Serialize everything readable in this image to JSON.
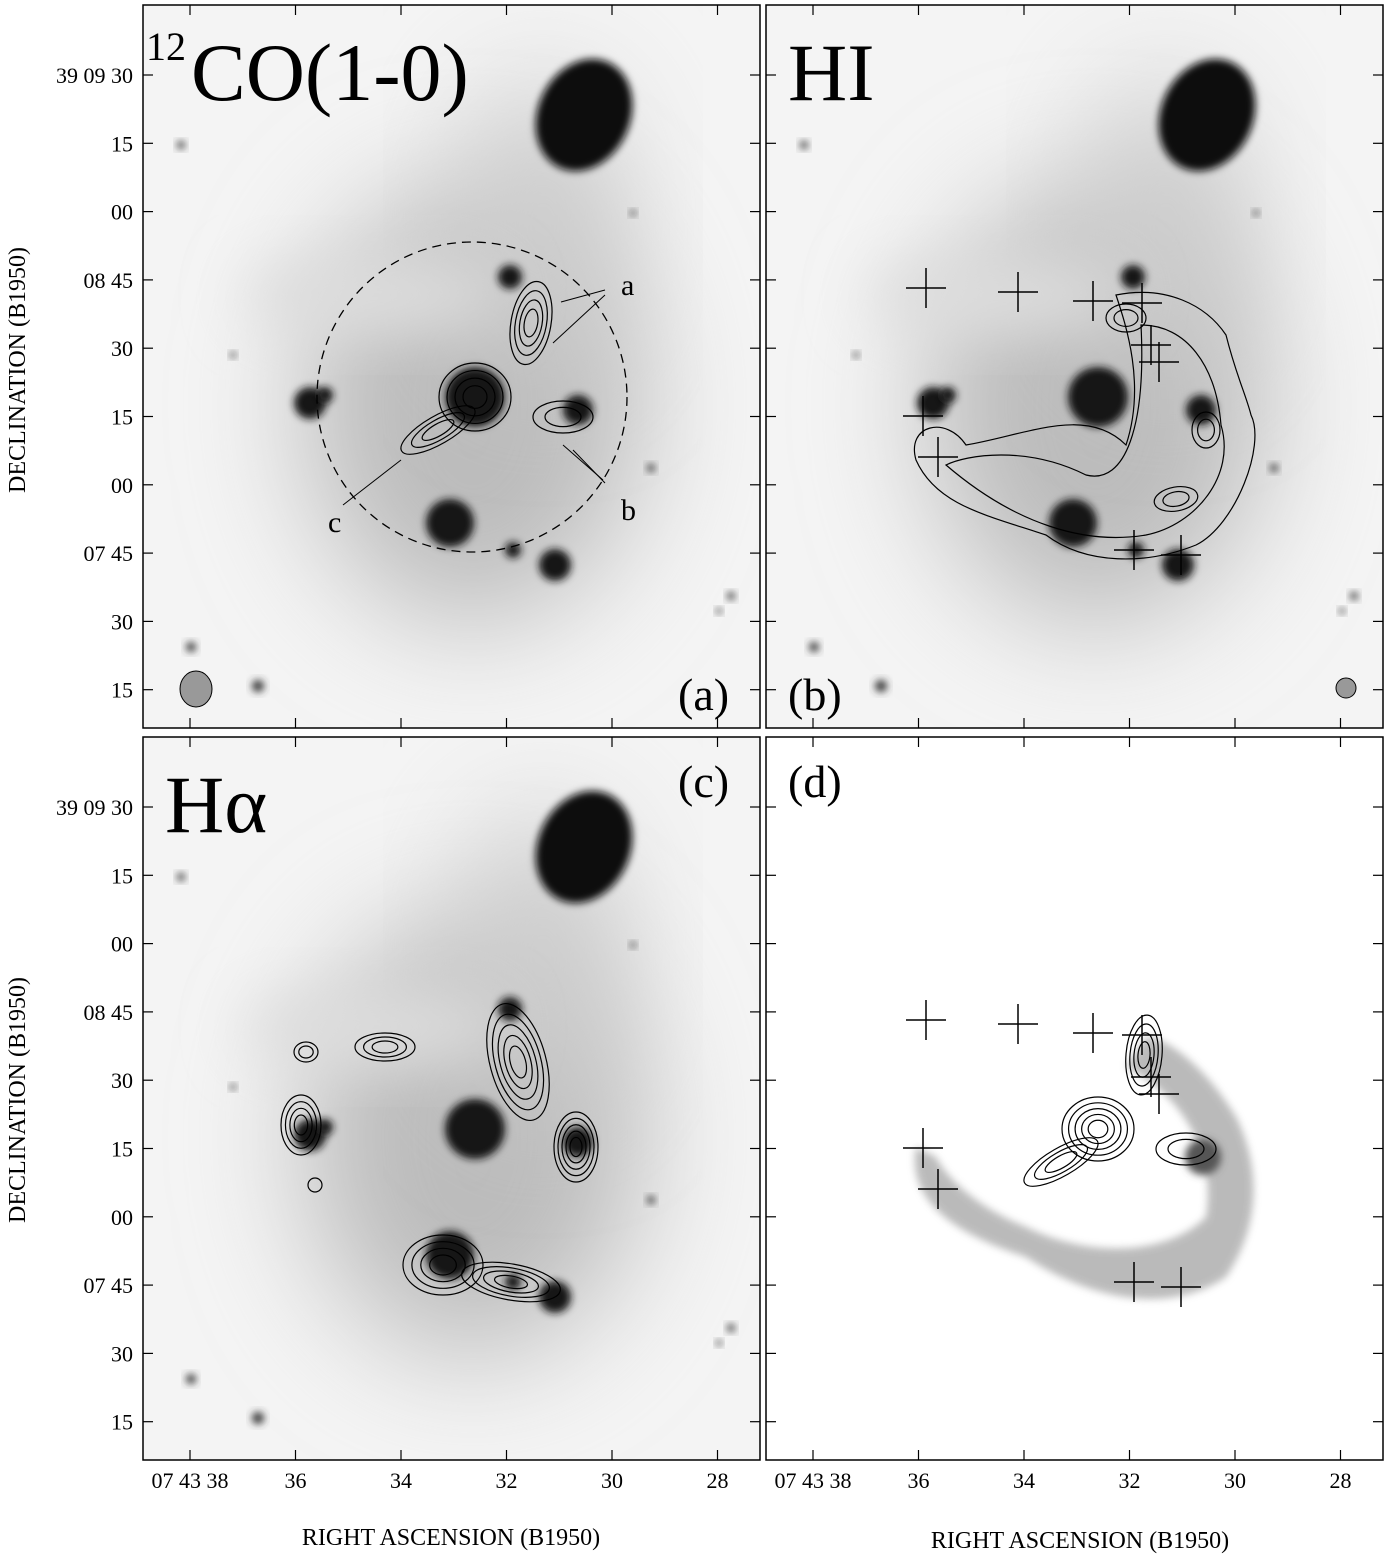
{
  "panels": [
    {
      "id": "(a)",
      "title": "CO(1-0)",
      "title_sup": "12",
      "annotations": [
        "a",
        "b",
        "c"
      ]
    },
    {
      "id": "(b)",
      "title": "HI"
    },
    {
      "id": "(c)",
      "title": "Hα"
    },
    {
      "id": "(d)"
    }
  ],
  "y_axis": {
    "label": "DECLINATION (B1950)",
    "ticks": [
      "39 09 30",
      "15",
      "00",
      "08 45",
      "30",
      "15",
      "00",
      "07 45",
      "30",
      "15"
    ]
  },
  "x_axis": {
    "label": "RIGHT ASCENSION (B1950)",
    "ticks": [
      "07 43 38",
      "36",
      "34",
      "32",
      "30",
      "28"
    ]
  }
}
